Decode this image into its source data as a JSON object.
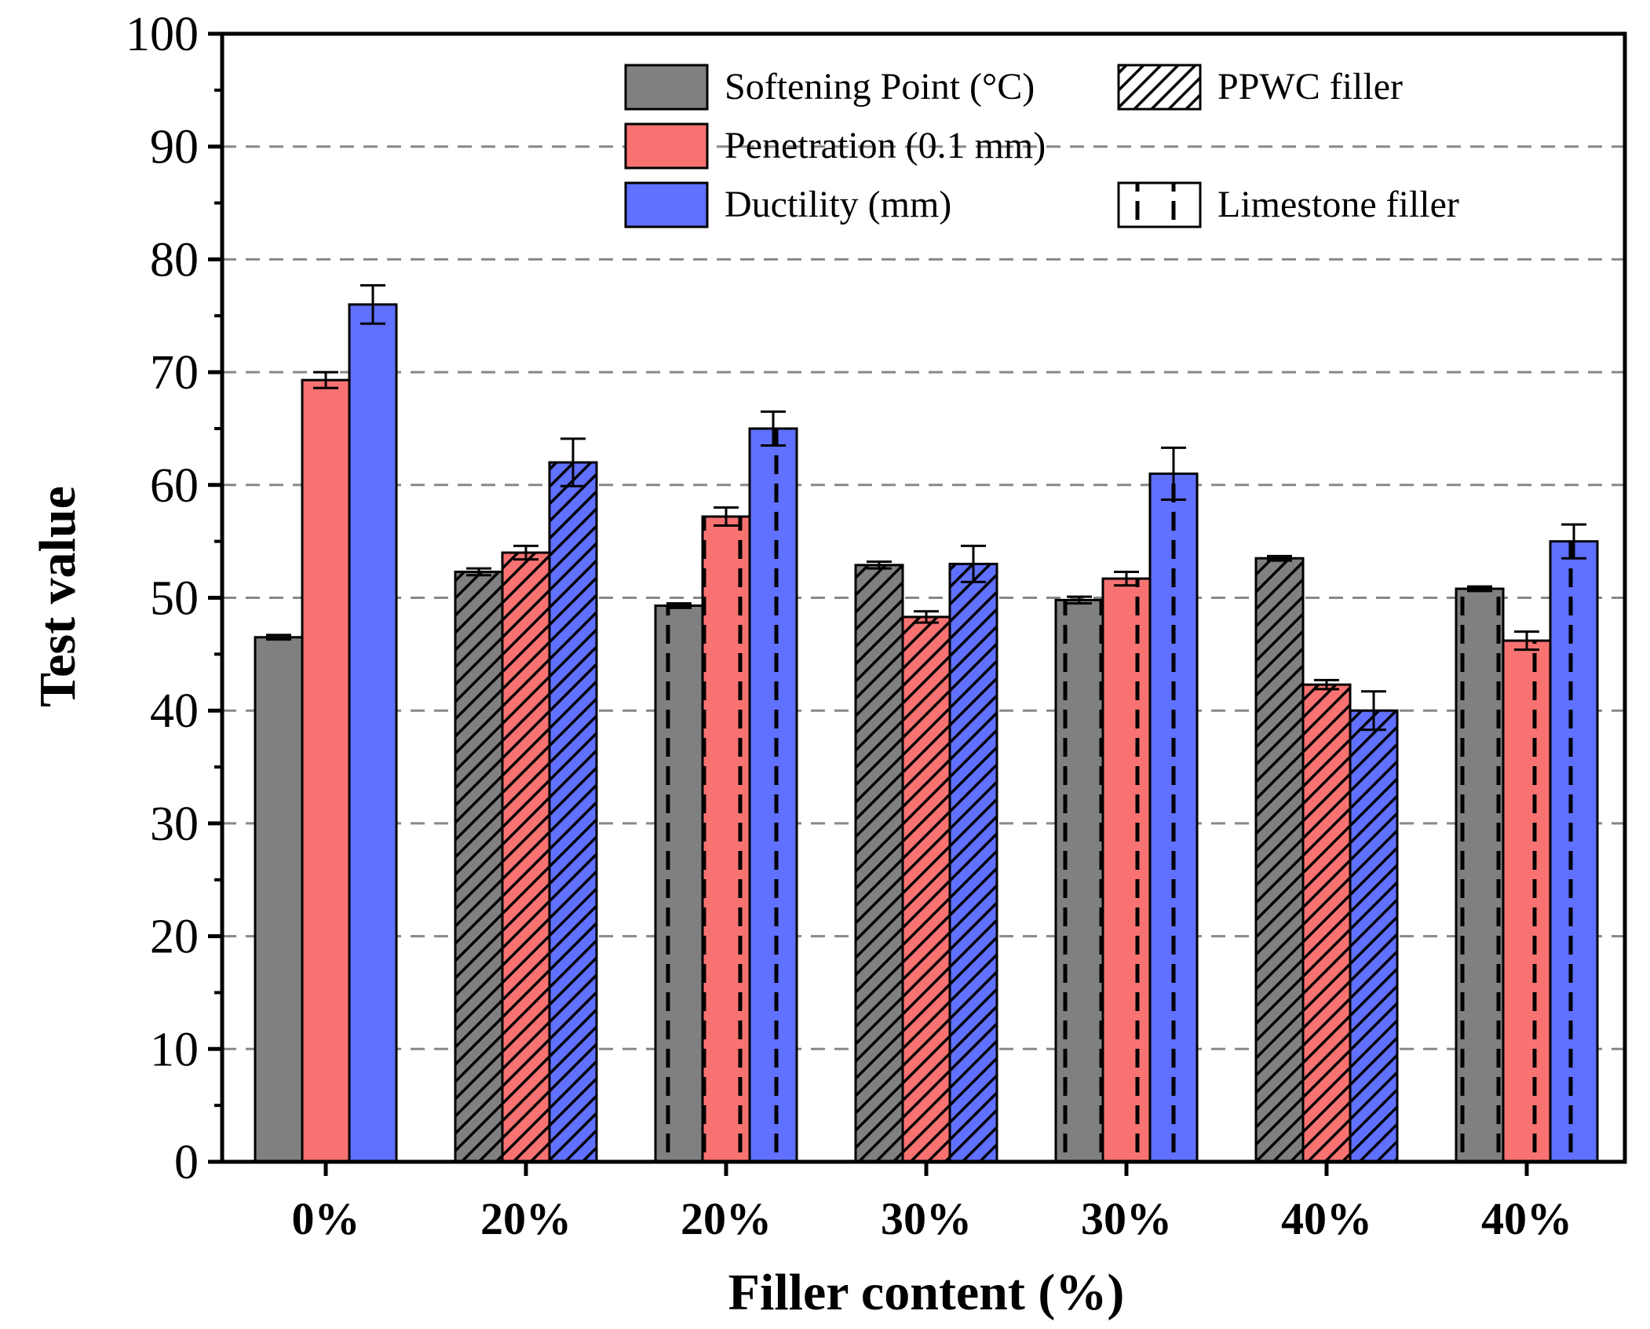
{
  "chart_data": {
    "type": "bar",
    "xlabel": "Filler content (%)",
    "ylabel": "Test value",
    "ylim": [
      0,
      100
    ],
    "yticks": [
      0,
      10,
      20,
      30,
      40,
      50,
      60,
      70,
      80,
      90,
      100
    ],
    "grid": "horizontal-dashed",
    "categories": [
      "0%",
      "20%",
      "20%",
      "30%",
      "30%",
      "40%",
      "40%"
    ],
    "category_filler": [
      "none",
      "PPWC",
      "Limestone",
      "PPWC",
      "Limestone",
      "PPWC",
      "Limestone"
    ],
    "series": [
      {
        "name": "Softening Point (°C)",
        "color": "#808080",
        "values": [
          46.5,
          52.3,
          49.3,
          52.9,
          49.8,
          53.5,
          50.8
        ],
        "errors": [
          0.2,
          0.3,
          0.2,
          0.3,
          0.3,
          0.2,
          0.2
        ]
      },
      {
        "name": "Penetration (0.1 mm)",
        "color": "#F87272",
        "values": [
          69.3,
          54.0,
          57.2,
          48.3,
          51.7,
          42.3,
          46.2
        ],
        "errors": [
          0.7,
          0.6,
          0.8,
          0.5,
          0.6,
          0.4,
          0.8
        ]
      },
      {
        "name": "Ductility (mm)",
        "color": "#6070FF",
        "values": [
          76.0,
          62.0,
          65.0,
          53.0,
          61.0,
          40.0,
          55.0
        ],
        "errors": [
          1.7,
          2.1,
          1.5,
          1.6,
          2.3,
          1.7,
          1.5
        ]
      }
    ],
    "legend": {
      "position": "top-right",
      "patterns": [
        {
          "name": "PPWC filler",
          "pattern": "diagonal-hatch"
        },
        {
          "name": "Limestone filler",
          "pattern": "vertical-dashed"
        }
      ]
    }
  }
}
